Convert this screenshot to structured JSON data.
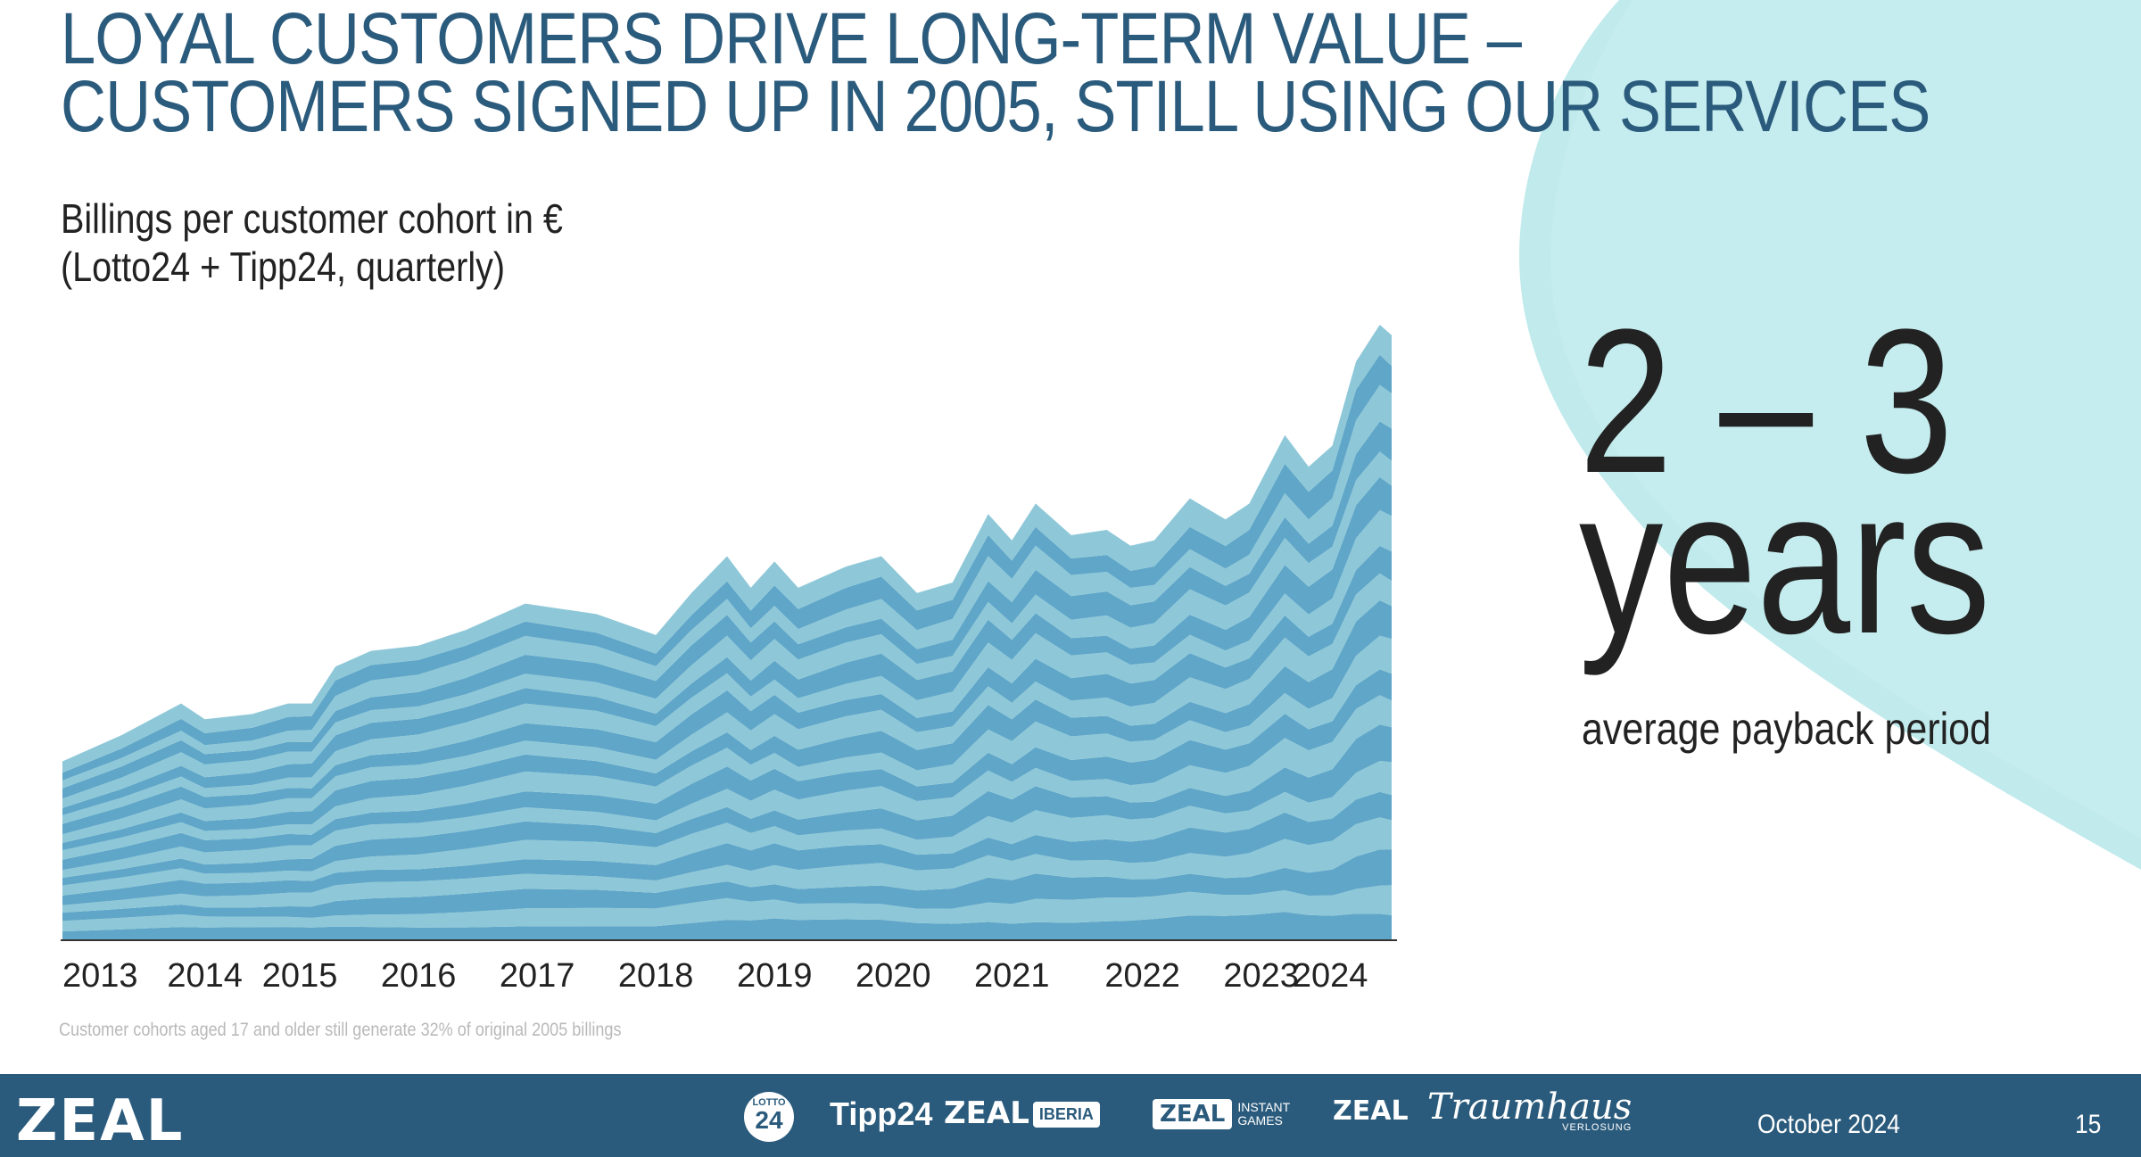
{
  "slide": {
    "title_lines": [
      "LOYAL CUSTOMERS DRIVE LONG-TERM VALUE –",
      "CUSTOMERS SIGNED UP IN 2005, STILL USING OUR SERVICES"
    ],
    "footnote": "Customer cohorts aged 17 and older still generate 32% of original 2005 billings"
  },
  "kpi": {
    "value_line1": "2 – 3",
    "value_line2": "years",
    "label": "average payback period"
  },
  "chart_data": {
    "type": "area",
    "stacked": true,
    "title_lines": [
      "Billings per customer cohort in €",
      "(Lotto24 + Tipp24, quarterly)"
    ],
    "xlabel": "",
    "ylabel": "",
    "x_tick_labels": [
      "2013",
      "2014",
      "2015",
      "2016",
      "2017",
      "2018",
      "2019",
      "2020",
      "2021",
      "2022",
      "2023",
      "2024"
    ],
    "x_tick_positions": [
      2013.0,
      2014.2,
      2015.0,
      2016.0,
      2017.0,
      2018.0,
      2019.0,
      2020.0,
      2021.0,
      2022.1,
      2023.1,
      2024.0
    ],
    "x": [
      2013.0,
      2013.5,
      2014.0,
      2014.2,
      2014.6,
      2014.9,
      2015.1,
      2015.3,
      2015.6,
      2016.0,
      2016.4,
      2016.9,
      2017.5,
      2018.0,
      2018.3,
      2018.6,
      2018.8,
      2019.0,
      2019.2,
      2019.6,
      2019.9,
      2020.2,
      2020.5,
      2020.8,
      2021.0,
      2021.2,
      2021.5,
      2021.8,
      2022.0,
      2022.2,
      2022.5,
      2022.8,
      2023.0,
      2023.3,
      2023.5,
      2023.7,
      2023.9,
      2024.1,
      2024.2
    ],
    "total": [
      34,
      39,
      45,
      42,
      43,
      45,
      45,
      52,
      55,
      56,
      59,
      64,
      62,
      58,
      66,
      73,
      67,
      72,
      67,
      71,
      73,
      66,
      68,
      81,
      76,
      83,
      77,
      78,
      75,
      76,
      84,
      80,
      83,
      96,
      90,
      94,
      110,
      117,
      115
    ],
    "cohort_count": 20,
    "grid": false,
    "colors": {
      "band_light": "#8ec8d8",
      "band_dark": "#5fa6c8",
      "axis": "#333333",
      "accent_blob": "#b5e6e9"
    }
  },
  "footer": {
    "logo": "ZEAL",
    "brands": {
      "lotto_top": "LOTTO",
      "lotto_num": "24",
      "tipp": "Tipp24",
      "zeal": "ZEAL",
      "iberia": "IBERIA",
      "instant_1": "INSTANT",
      "instant_2": "GAMES",
      "traum": "Traumhaus",
      "traum_sub": "VERLOSUNG"
    },
    "date": "October 2024",
    "page": "15"
  }
}
